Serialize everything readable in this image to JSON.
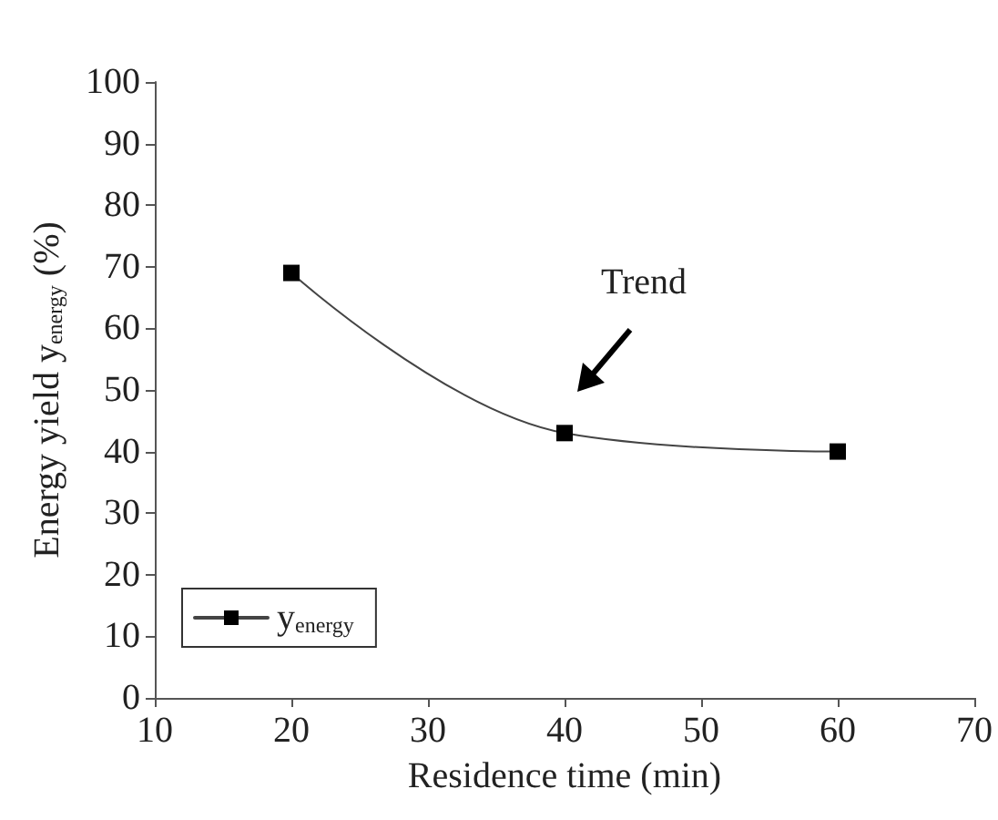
{
  "chart_data": {
    "type": "line",
    "xlabel": "Residence time (min)",
    "ylabel": "Energy yield y$_{energy}$ (%)",
    "x": [
      20,
      40,
      60
    ],
    "series": [
      {
        "name": "y$_{energy}$",
        "color": "#000000",
        "values": [
          69,
          43,
          40
        ]
      }
    ],
    "xlim": [
      10,
      70
    ],
    "xticks": [
      10,
      20,
      30,
      40,
      50,
      60,
      70
    ],
    "ylim": [
      0,
      100
    ],
    "yticks": [
      0,
      10,
      20,
      30,
      40,
      50,
      60,
      70,
      80,
      90,
      100
    ],
    "annotations": [
      "Trend"
    ],
    "grid": false,
    "legend": "bottom left",
    "marker": "square",
    "line_style": "solid"
  }
}
